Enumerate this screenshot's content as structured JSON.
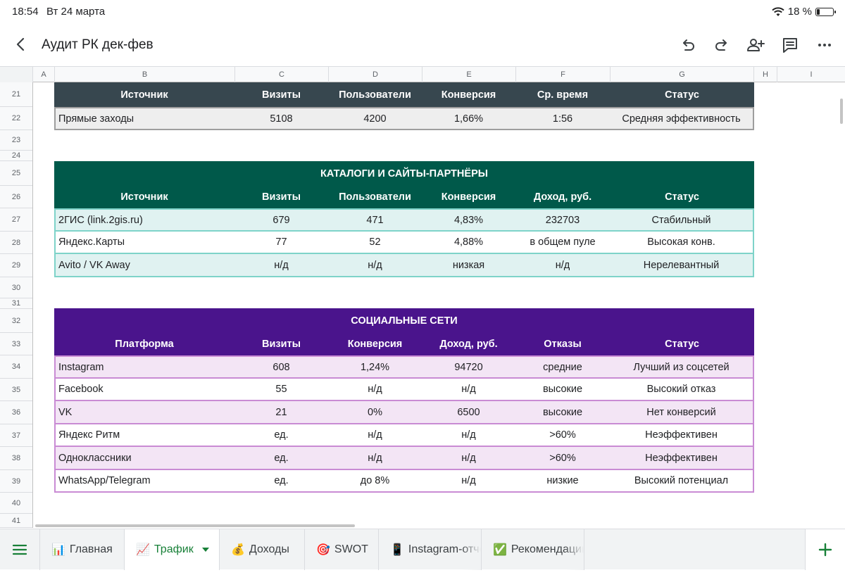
{
  "status_bar": {
    "time": "18:54",
    "date": "Вт 24 марта",
    "battery": "18 %",
    "battery_level": 0.18
  },
  "header": {
    "title": "Аудит РК дек-фев"
  },
  "columns": [
    "A",
    "B",
    "C",
    "D",
    "E",
    "F",
    "G",
    "H",
    "I"
  ],
  "rows": [
    "21",
    "22",
    "23",
    "24",
    "25",
    "26",
    "27",
    "28",
    "29",
    "30",
    "31",
    "32",
    "33",
    "34",
    "35",
    "36",
    "37",
    "38",
    "39",
    "40",
    "41"
  ],
  "table_direct": {
    "headers": [
      "Источник",
      "Визиты",
      "Пользователи",
      "Конверсия",
      "Ср. время",
      "Статус"
    ],
    "rows": [
      [
        "Прямые заходы",
        "5108",
        "4200",
        "1,66%",
        "1:56",
        "Средняя эффективность"
      ]
    ]
  },
  "table_catalogs": {
    "title": "КАТАЛОГИ И САЙТЫ-ПАРТНЁРЫ",
    "headers": [
      "Источник",
      "Визиты",
      "Пользователи",
      "Конверсия",
      "Доход, руб.",
      "Статус"
    ],
    "rows": [
      [
        "2ГИС (link.2gis.ru)",
        "679",
        "471",
        "4,83%",
        "232703",
        "Стабильный"
      ],
      [
        "Яндекс.Карты",
        "77",
        "52",
        "4,88%",
        "в общем пуле",
        "Высокая конв."
      ],
      [
        "Avito / VK Away",
        "н/д",
        "н/д",
        "низкая",
        "н/д",
        "Нерелевантный"
      ]
    ]
  },
  "table_social": {
    "title": "СОЦИАЛЬНЫЕ СЕТИ",
    "headers": [
      "Платформа",
      "Визиты",
      "Конверсия",
      "Доход, руб.",
      "Отказы",
      "Статус"
    ],
    "rows": [
      [
        "Instagram",
        "608",
        "1,24%",
        "94720",
        "средние",
        "Лучший из соцсетей"
      ],
      [
        "Facebook",
        "55",
        "н/д",
        "н/д",
        "высокие",
        "Высокий отказ"
      ],
      [
        "VK",
        "21",
        "0%",
        "6500",
        "высокие",
        "Нет конверсий"
      ],
      [
        "Яндекс Ритм",
        "ед.",
        "н/д",
        "н/д",
        ">60%",
        "Неэффективен"
      ],
      [
        "Одноклассники",
        "ед.",
        "н/д",
        "н/д",
        ">60%",
        "Неэффективен"
      ],
      [
        "WhatsApp/Telegram",
        "ед.",
        "до 8%",
        "н/д",
        "низкие",
        "Высокий потенциал"
      ]
    ]
  },
  "tabs": [
    {
      "icon": "📊",
      "label": "Главная"
    },
    {
      "icon": "📈",
      "label": "Трафик"
    },
    {
      "icon": "💰",
      "label": "Доходы"
    },
    {
      "icon": "🎯",
      "label": "SWOT"
    },
    {
      "icon": "📱",
      "label": "Instagram-отчёт"
    },
    {
      "icon": "✅",
      "label": "Рекомендации"
    }
  ],
  "colors": {
    "accent": "#188038",
    "direct_header": "#37474f",
    "catalogs": "#00594a",
    "social": "#4a148c"
  }
}
